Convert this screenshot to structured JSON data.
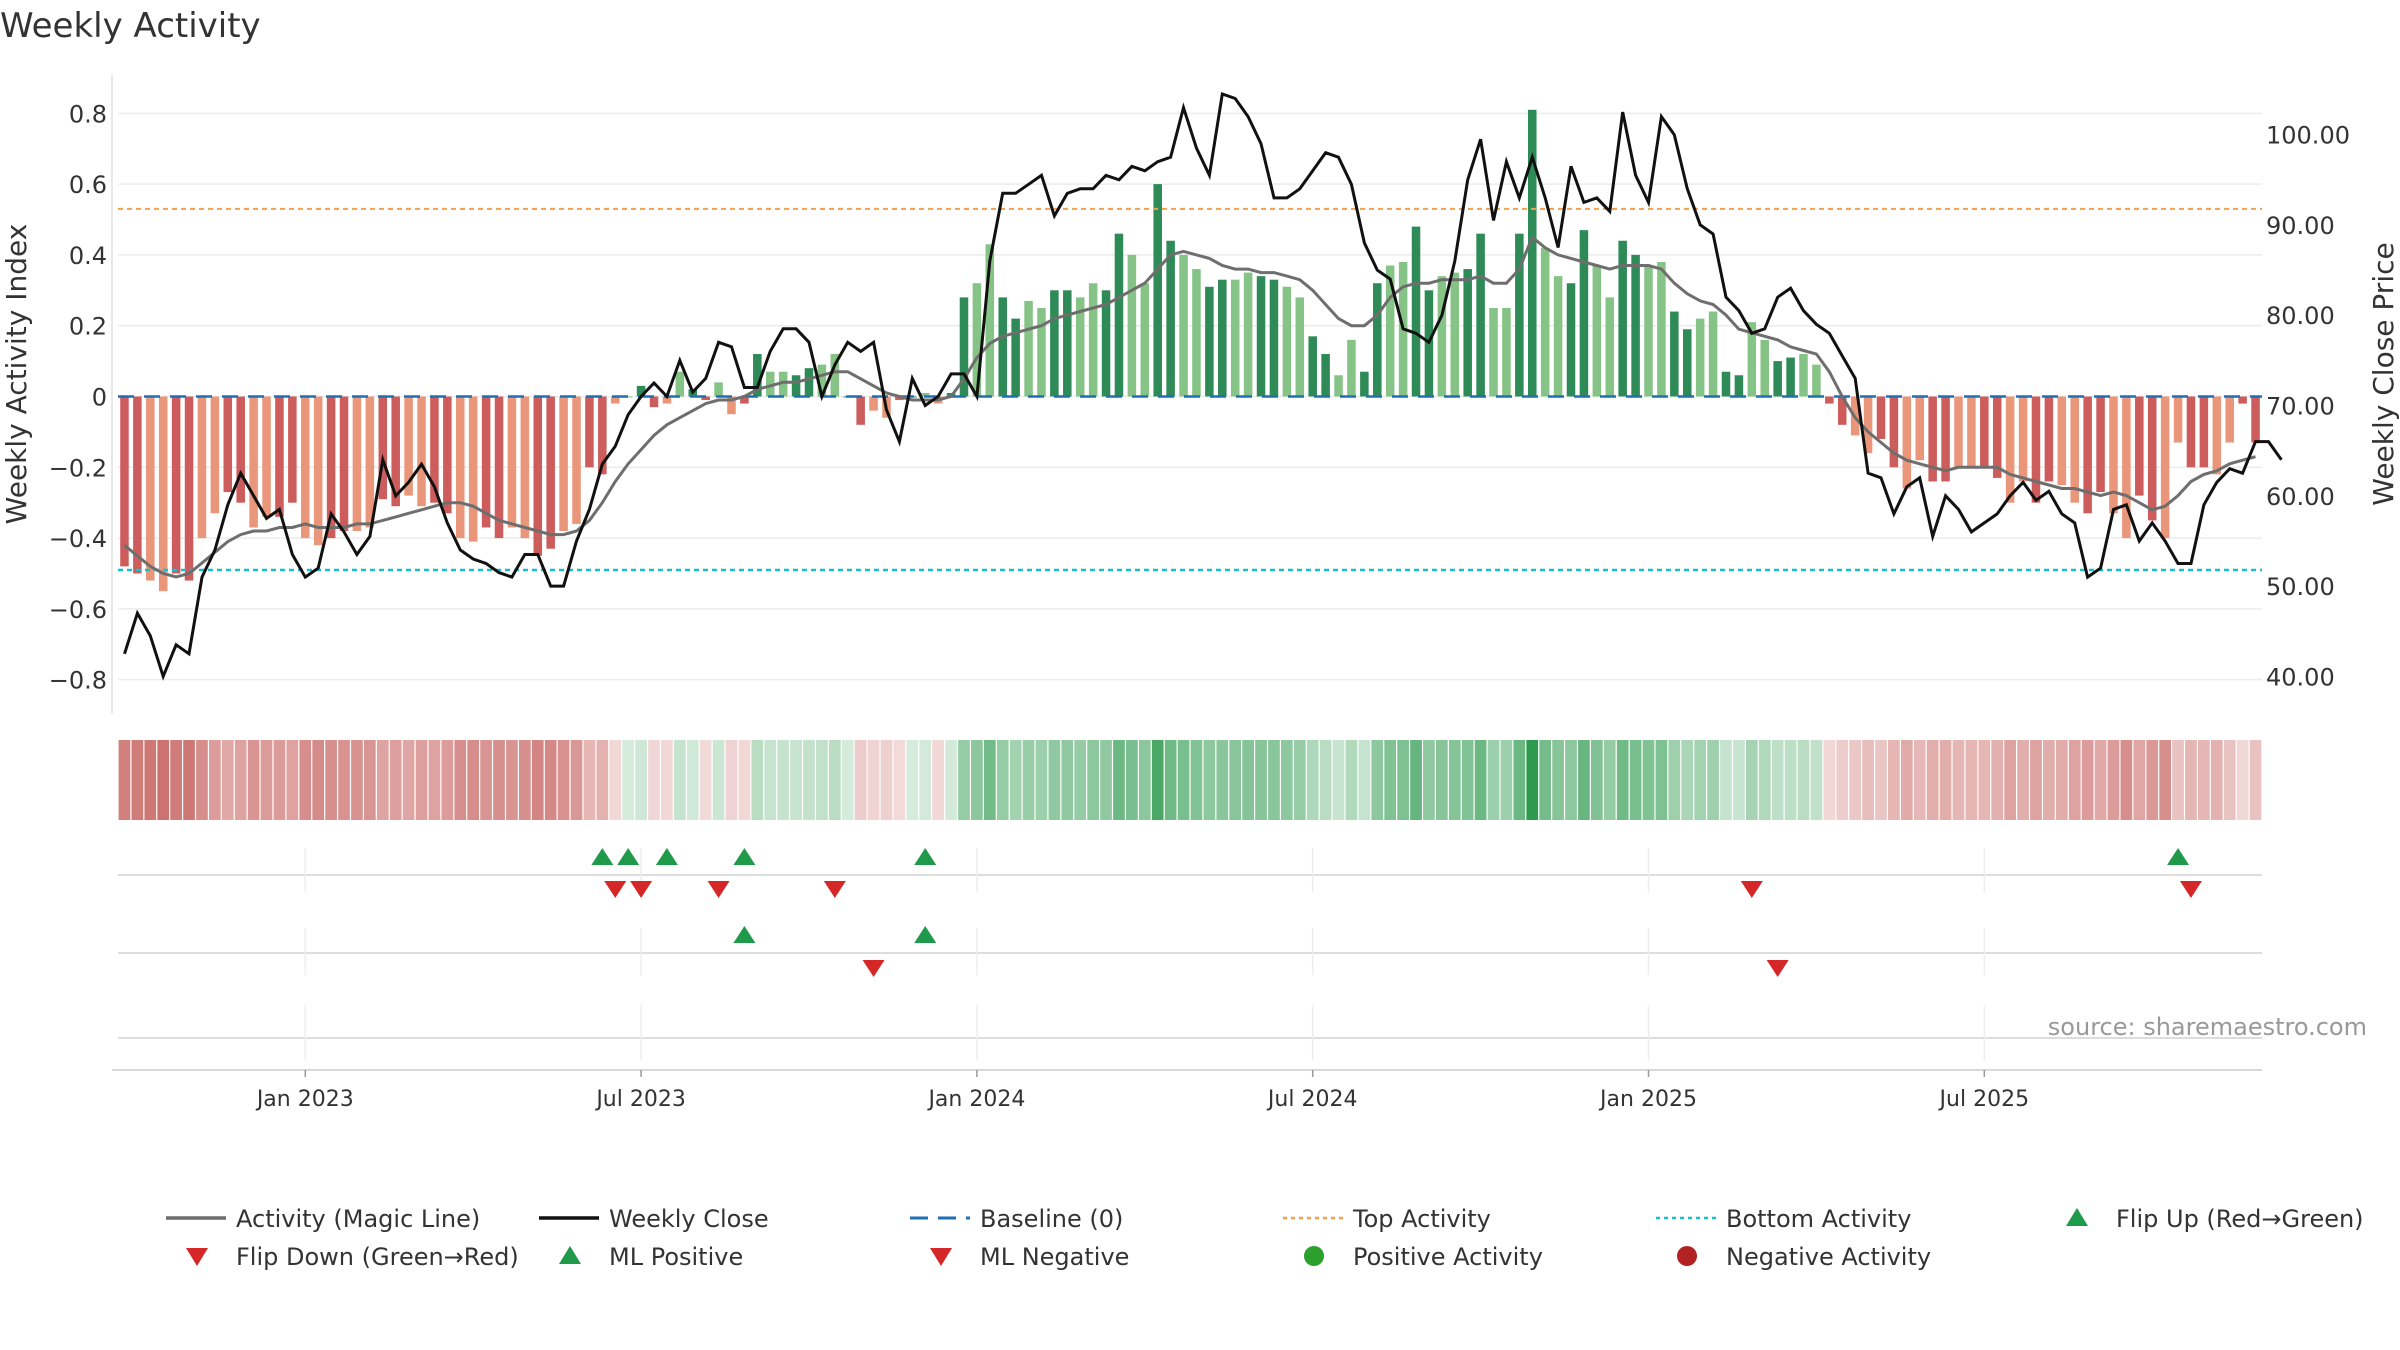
{
  "chart_data": {
    "type": "bar",
    "title": "Weekly Activity",
    "ylabel_left": "Weekly Activity Index",
    "ylabel_right": "Weekly Close Price",
    "source": "source: sharemaestro.com",
    "ylim_left": [
      -0.88,
      0.88
    ],
    "ylim_right": [
      36.5,
      105.5
    ],
    "yticks_left": [
      "0.8",
      "0.6",
      "0.4",
      "0.2",
      "0",
      "−0.2",
      "−0.4",
      "−0.6",
      "−0.8"
    ],
    "yticks_left_values": [
      0.8,
      0.6,
      0.4,
      0.2,
      0,
      -0.2,
      -0.4,
      -0.6,
      -0.8
    ],
    "yticks_right": [
      "100.00",
      "90.00",
      "80.00",
      "70.00",
      "60.00",
      "50.00",
      "40.00"
    ],
    "yticks_right_values": [
      100,
      90,
      80,
      70,
      60,
      50,
      40
    ],
    "xticks": [
      "Jan 2023",
      "Jul 2023",
      "Jan 2024",
      "Jul 2024",
      "Jan 2025",
      "Jul 2025"
    ],
    "xticks_week_index": [
      14.5,
      40.5,
      66.5,
      92.5,
      118.5,
      144.5
    ],
    "top_activity": 0.53,
    "bottom_activity": -0.49,
    "weekly_activity": [
      -0.48,
      -0.5,
      -0.52,
      -0.55,
      -0.5,
      -0.52,
      -0.4,
      -0.33,
      -0.27,
      -0.3,
      -0.37,
      -0.34,
      -0.34,
      -0.3,
      -0.4,
      -0.42,
      -0.4,
      -0.38,
      -0.38,
      -0.37,
      -0.29,
      -0.31,
      -0.28,
      -0.31,
      -0.3,
      -0.33,
      -0.4,
      -0.41,
      -0.37,
      -0.4,
      -0.37,
      -0.4,
      -0.45,
      -0.43,
      -0.38,
      -0.36,
      -0.2,
      -0.22,
      -0.02,
      0.0,
      0.03,
      -0.03,
      -0.02,
      0.07,
      0.02,
      -0.01,
      0.04,
      -0.05,
      -0.02,
      0.12,
      0.07,
      0.07,
      0.06,
      0.08,
      0.09,
      0.12,
      0.0,
      -0.08,
      -0.04,
      -0.06,
      -0.01,
      0.0,
      0.01,
      -0.02,
      0.01,
      0.28,
      0.32,
      0.43,
      0.28,
      0.22,
      0.27,
      0.25,
      0.3,
      0.3,
      0.28,
      0.32,
      0.3,
      0.46,
      0.4,
      0.32,
      0.6,
      0.44,
      0.4,
      0.36,
      0.31,
      0.33,
      0.33,
      0.35,
      0.34,
      0.33,
      0.31,
      0.28,
      0.17,
      0.12,
      0.06,
      0.16,
      0.07,
      0.32,
      0.37,
      0.38,
      0.48,
      0.3,
      0.34,
      0.35,
      0.36,
      0.46,
      0.25,
      0.25,
      0.46,
      0.81,
      0.42,
      0.34,
      0.32,
      0.47,
      0.37,
      0.28,
      0.44,
      0.4,
      0.37,
      0.38,
      0.24,
      0.19,
      0.22,
      0.24,
      0.07,
      0.06,
      0.21,
      0.16,
      0.1,
      0.11,
      0.12,
      0.09,
      -0.02,
      -0.08,
      -0.11,
      -0.16,
      -0.12,
      -0.2,
      -0.26,
      -0.18,
      -0.24,
      -0.24,
      -0.2,
      -0.2,
      -0.2,
      -0.23,
      -0.3,
      -0.24,
      -0.3,
      -0.24,
      -0.25,
      -0.3,
      -0.33,
      -0.27,
      -0.33,
      -0.4,
      -0.28,
      -0.35,
      -0.4,
      -0.13,
      -0.2,
      -0.2,
      -0.22,
      -0.13,
      -0.02,
      -0.13
    ],
    "magic_line": [
      -0.42,
      -0.45,
      -0.48,
      -0.5,
      -0.51,
      -0.5,
      -0.47,
      -0.44,
      -0.41,
      -0.39,
      -0.38,
      -0.38,
      -0.37,
      -0.37,
      -0.36,
      -0.37,
      -0.37,
      -0.37,
      -0.36,
      -0.36,
      -0.35,
      -0.34,
      -0.33,
      -0.32,
      -0.31,
      -0.3,
      -0.3,
      -0.31,
      -0.33,
      -0.35,
      -0.36,
      -0.37,
      -0.38,
      -0.39,
      -0.39,
      -0.38,
      -0.35,
      -0.3,
      -0.24,
      -0.19,
      -0.15,
      -0.11,
      -0.08,
      -0.06,
      -0.04,
      -0.02,
      -0.01,
      -0.01,
      0.0,
      0.02,
      0.03,
      0.04,
      0.04,
      0.05,
      0.06,
      0.07,
      0.07,
      0.05,
      0.03,
      0.01,
      0.0,
      -0.01,
      -0.01,
      -0.01,
      0.0,
      0.05,
      0.11,
      0.15,
      0.17,
      0.18,
      0.19,
      0.2,
      0.22,
      0.23,
      0.24,
      0.25,
      0.26,
      0.28,
      0.3,
      0.32,
      0.36,
      0.4,
      0.41,
      0.4,
      0.39,
      0.37,
      0.36,
      0.36,
      0.35,
      0.35,
      0.34,
      0.33,
      0.3,
      0.26,
      0.22,
      0.2,
      0.2,
      0.23,
      0.28,
      0.31,
      0.32,
      0.32,
      0.33,
      0.33,
      0.33,
      0.34,
      0.32,
      0.32,
      0.36,
      0.45,
      0.42,
      0.4,
      0.39,
      0.38,
      0.37,
      0.36,
      0.37,
      0.37,
      0.37,
      0.36,
      0.32,
      0.29,
      0.27,
      0.26,
      0.23,
      0.19,
      0.18,
      0.17,
      0.16,
      0.14,
      0.13,
      0.12,
      0.07,
      0.0,
      -0.06,
      -0.1,
      -0.13,
      -0.16,
      -0.18,
      -0.19,
      -0.2,
      -0.21,
      -0.2,
      -0.2,
      -0.2,
      -0.2,
      -0.22,
      -0.23,
      -0.24,
      -0.25,
      -0.26,
      -0.26,
      -0.27,
      -0.28,
      -0.27,
      -0.28,
      -0.3,
      -0.32,
      -0.31,
      -0.28,
      -0.24,
      -0.22,
      -0.21,
      -0.19,
      -0.18,
      -0.17
    ],
    "weekly_close": [
      42.5,
      47.0,
      44.5,
      40.0,
      43.5,
      42.5,
      51.0,
      54.0,
      59.0,
      62.5,
      60.0,
      57.5,
      58.5,
      53.5,
      51.0,
      52.0,
      58.0,
      56.0,
      53.5,
      55.5,
      64.0,
      60.0,
      61.5,
      63.5,
      61.0,
      57.0,
      54.0,
      53.0,
      52.5,
      51.5,
      51.0,
      53.5,
      53.5,
      50.0,
      50.0,
      55.0,
      58.5,
      63.5,
      65.5,
      69.0,
      71.0,
      72.5,
      71.0,
      75.0,
      71.5,
      73.0,
      77.0,
      76.5,
      72.0,
      72.0,
      76.0,
      78.5,
      78.5,
      77.0,
      71.0,
      74.5,
      77.0,
      76.0,
      77.0,
      69.5,
      66.0,
      73.0,
      70.0,
      71.0,
      73.5,
      73.5,
      71.0,
      86.0,
      93.5,
      93.5,
      94.5,
      95.5,
      91.0,
      93.5,
      94.0,
      94.0,
      95.5,
      95.0,
      96.5,
      96.0,
      97.0,
      97.5,
      103.0,
      98.5,
      95.5,
      104.5,
      104.0,
      102.0,
      99.0,
      93.0,
      93.0,
      94.0,
      96.0,
      98.0,
      97.5,
      94.5,
      88.0,
      85.0,
      84.0,
      78.5,
      78.0,
      77.0,
      80.0,
      86.0,
      95.0,
      99.5,
      90.5,
      97.0,
      93.0,
      97.5,
      93.0,
      87.5,
      96.5,
      92.5,
      93.0,
      91.5,
      102.5,
      95.5,
      92.5,
      102.0,
      100.0,
      94.0,
      90.0,
      89.0,
      82.0,
      80.5,
      78.0,
      78.5,
      82.0,
      83.0,
      80.5,
      79.0,
      78.0,
      75.5,
      73.0,
      62.5,
      62.0,
      58.0,
      61.0,
      62.0,
      55.5,
      60.0,
      58.5,
      56.0,
      57.0,
      58.0,
      60.0,
      61.5,
      59.5,
      60.5,
      58.0,
      57.0,
      51.0,
      52.0,
      58.5,
      59.0,
      55.0,
      57.0,
      55.0,
      52.5,
      52.5,
      59.0,
      61.5,
      63.0,
      62.5,
      66.0,
      66.0,
      64.0
    ],
    "flip_up_weeks": [
      37,
      39,
      42,
      48,
      62,
      159
    ],
    "flip_down_weeks": [
      38,
      40,
      46,
      55,
      126,
      160
    ],
    "ml_positive_weeks": [
      48,
      62
    ],
    "ml_negative_weeks": [
      58,
      128
    ],
    "legend": [
      {
        "label": "Activity (Magic Line)",
        "kind": "line",
        "color": "#6e6e6e"
      },
      {
        "label": "Weekly Close",
        "kind": "line",
        "color": "#111111"
      },
      {
        "label": "Baseline (0)",
        "kind": "dash",
        "color": "#1f6fb5"
      },
      {
        "label": "Top Activity",
        "kind": "dot",
        "color": "#f0a050"
      },
      {
        "label": "Bottom Activity",
        "kind": "dot",
        "color": "#17becf"
      },
      {
        "label": "Flip Up (Red→Green)",
        "kind": "tri-up",
        "color": "#1f9a4a"
      },
      {
        "label": "Flip Down (Green→Red)",
        "kind": "tri-down",
        "color": "#d62728"
      },
      {
        "label": "ML Positive",
        "kind": "tri-up",
        "color": "#1f9a4a"
      },
      {
        "label": "ML Negative",
        "kind": "tri-down",
        "color": "#d62728"
      },
      {
        "label": "Positive Activity",
        "kind": "circle",
        "color": "#2ca02c"
      },
      {
        "label": "Negative Activity",
        "kind": "circle",
        "color": "#b22222"
      }
    ],
    "colors": {
      "pos_strong": "#2e8b57",
      "pos_light": "#86c386",
      "neg_strong": "#cd5c5c",
      "neg_light": "#e9967a",
      "magic": "#6e6e6e",
      "close": "#111111",
      "baseline": "#1f6fb5",
      "top": "#f0a050",
      "bottom": "#17becf",
      "up": "#1f9a4a",
      "down": "#d62728"
    }
  }
}
